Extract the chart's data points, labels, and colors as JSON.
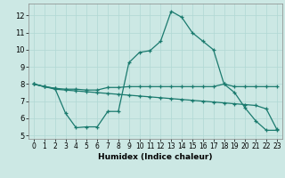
{
  "xlabel": "Humidex (Indice chaleur)",
  "background_color": "#cce8e4",
  "grid_color": "#b0d8d4",
  "line_color": "#1a7a6e",
  "xlim": [
    -0.5,
    23.5
  ],
  "ylim": [
    4.8,
    12.7
  ],
  "yticks": [
    5,
    6,
    7,
    8,
    9,
    10,
    11,
    12
  ],
  "xticks": [
    0,
    1,
    2,
    3,
    4,
    5,
    6,
    7,
    8,
    9,
    10,
    11,
    12,
    13,
    14,
    15,
    16,
    17,
    18,
    19,
    20,
    21,
    22,
    23
  ],
  "line1_x": [
    0,
    1,
    2,
    3,
    4,
    5,
    6,
    7,
    8,
    9,
    10,
    11,
    12,
    13,
    14,
    15,
    16,
    17,
    18,
    19,
    20,
    21,
    22,
    23
  ],
  "line1_y": [
    8.0,
    7.85,
    7.75,
    6.3,
    5.45,
    5.5,
    5.5,
    6.4,
    6.4,
    9.25,
    9.85,
    9.95,
    10.5,
    12.25,
    11.9,
    11.0,
    10.5,
    10.0,
    8.0,
    7.5,
    6.6,
    5.85,
    5.3,
    5.3
  ],
  "line2_x": [
    0,
    1,
    2,
    3,
    4,
    5,
    6,
    7,
    8,
    9,
    10,
    11,
    12,
    13,
    14,
    15,
    16,
    17,
    18,
    19,
    20,
    21,
    22,
    23
  ],
  "line2_y": [
    8.0,
    7.85,
    7.75,
    7.7,
    7.7,
    7.65,
    7.65,
    7.8,
    7.8,
    7.85,
    7.85,
    7.85,
    7.85,
    7.85,
    7.85,
    7.85,
    7.85,
    7.85,
    8.0,
    7.85,
    7.85,
    7.85,
    7.85,
    7.85
  ],
  "line3_x": [
    0,
    1,
    2,
    3,
    4,
    5,
    6,
    7,
    8,
    9,
    10,
    11,
    12,
    13,
    14,
    15,
    16,
    17,
    18,
    19,
    20,
    21,
    22,
    23
  ],
  "line3_y": [
    8.0,
    7.85,
    7.7,
    7.65,
    7.6,
    7.55,
    7.5,
    7.45,
    7.4,
    7.35,
    7.3,
    7.25,
    7.2,
    7.15,
    7.1,
    7.05,
    7.0,
    6.95,
    6.9,
    6.85,
    6.8,
    6.75,
    6.55,
    5.35
  ]
}
